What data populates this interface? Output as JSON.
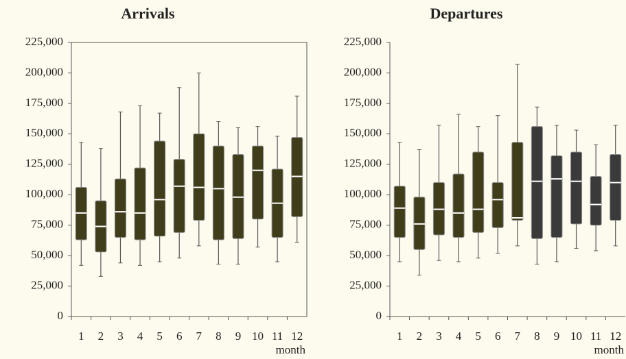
{
  "chart_data": [
    {
      "type": "box",
      "title": "Arrivals",
      "x_label": "month",
      "categories": [
        "1",
        "2",
        "3",
        "4",
        "5",
        "6",
        "7",
        "8",
        "9",
        "10",
        "11",
        "12"
      ],
      "min": [
        42000,
        33000,
        44000,
        42000,
        45000,
        48000,
        58000,
        43000,
        43000,
        57000,
        45000,
        61000
      ],
      "q1": [
        63000,
        53000,
        65000,
        63000,
        66000,
        69000,
        79000,
        63000,
        64000,
        80000,
        65000,
        82000
      ],
      "median": [
        85000,
        74000,
        86000,
        85000,
        96000,
        107000,
        106000,
        105000,
        98000,
        120000,
        93000,
        115000
      ],
      "q3": [
        106000,
        95000,
        113000,
        122000,
        144000,
        129000,
        150000,
        140000,
        133000,
        140000,
        121000,
        147000
      ],
      "max": [
        143000,
        138000,
        168000,
        173000,
        167000,
        188000,
        200000,
        160000,
        155000,
        156000,
        148000,
        181000
      ],
      "colors": [
        "#3f3d1a",
        "#3f3d1a",
        "#3f3d1a",
        "#3f3d1a",
        "#3f3d1a",
        "#3f3d1a",
        "#3f3d1a",
        "#3f3d1a",
        "#3f3d1a",
        "#3f3d1a",
        "#3f3d1a",
        "#3f3d1a"
      ],
      "ylim": [
        0,
        225000
      ],
      "yticks": [
        0,
        {
          "value": 25000,
          "label": "25,000"
        },
        {
          "value": 50000,
          "label": "50,000"
        },
        {
          "value": 75000,
          "label": "75,000"
        },
        {
          "value": 100000,
          "label": "100,000"
        },
        {
          "value": 125000,
          "label": "125,000"
        },
        {
          "value": 150000,
          "label": "150,000"
        },
        {
          "value": 175000,
          "label": "175,000"
        },
        {
          "value": 200000,
          "label": "200,000"
        },
        {
          "value": 225000,
          "label": "225,000"
        }
      ]
    },
    {
      "type": "box",
      "title": "Departures",
      "x_label": "month",
      "categories": [
        "1",
        "2",
        "3",
        "4",
        "5",
        "6",
        "7",
        "8",
        "9",
        "10",
        "11",
        "12"
      ],
      "min": [
        45000,
        34000,
        46000,
        45000,
        48000,
        52000,
        58000,
        43000,
        45000,
        56000,
        54000,
        58000
      ],
      "q1": [
        65000,
        55000,
        67000,
        65000,
        69000,
        73000,
        79000,
        64000,
        65000,
        76000,
        75000,
        79000
      ],
      "median": [
        89000,
        76000,
        88000,
        85000,
        88000,
        96000,
        81000,
        111000,
        113000,
        111000,
        92000,
        110000
      ],
      "q3": [
        107000,
        98000,
        110000,
        117000,
        135000,
        110000,
        143000,
        156000,
        132000,
        135000,
        115000,
        133000
      ],
      "max": [
        143000,
        137000,
        157000,
        166000,
        156000,
        165000,
        207000,
        172000,
        157000,
        153000,
        141000,
        157000
      ],
      "colors": [
        "#3f3d1a",
        "#3f3d1a",
        "#3f3d1a",
        "#3f3d1a",
        "#3f3d1a",
        "#3f3d1a",
        "#3f3d1a",
        "#3a3a3a",
        "#3a3a3a",
        "#3a3a3a",
        "#3a3a3a",
        "#3a3a3a"
      ],
      "ylim": [
        0,
        225000
      ],
      "yticks": [
        0,
        {
          "value": 25000,
          "label": "25,000"
        },
        {
          "value": 50000,
          "label": "50,000"
        },
        {
          "value": 75000,
          "label": "75,000"
        },
        {
          "value": 100000,
          "label": "100,000"
        },
        {
          "value": 125000,
          "label": "125,000"
        },
        {
          "value": 150000,
          "label": "150,000"
        },
        {
          "value": 175000,
          "label": "175,000"
        },
        {
          "value": 200000,
          "label": "200,000"
        },
        {
          "value": 225000,
          "label": "225,000"
        }
      ]
    }
  ]
}
